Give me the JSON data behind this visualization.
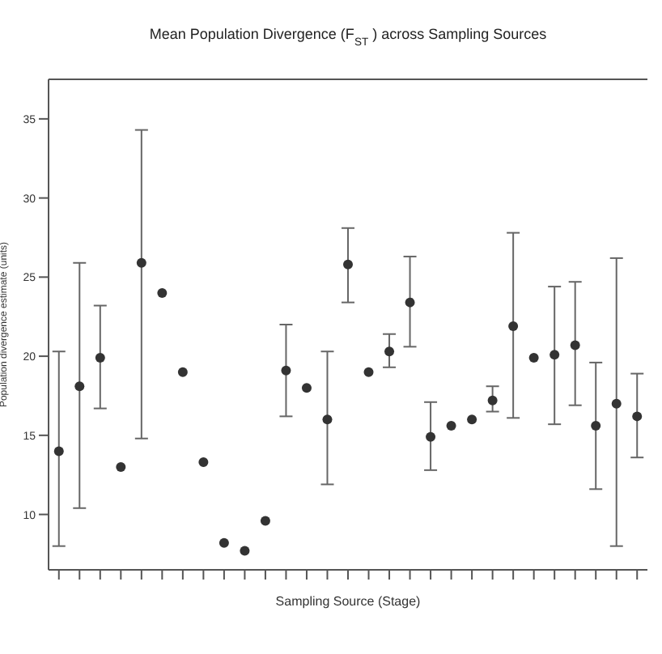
{
  "chart_data": {
    "type": "scatter",
    "title": "Mean Population Divergence (F$_{ST}$) across Sampling Sources",
    "xlabel": "Sampling Source (Stage)",
    "ylabel": "Population divergence estimate (units)",
    "categories": [
      null,
      null,
      null,
      null,
      null,
      null,
      null,
      null,
      null,
      null,
      null,
      null,
      null,
      null,
      null,
      null,
      null,
      null,
      null,
      null,
      null,
      null,
      null,
      null,
      null,
      null,
      null,
      null,
      null
    ],
    "series": [
      {
        "color": "#333333",
        "values": [
          14.0,
          18.1,
          19.9,
          13.0,
          25.9,
          24.0,
          19.0,
          13.3,
          8.2,
          7.7,
          9.6,
          19.1,
          18.0,
          16.0,
          25.8,
          19.0,
          20.3,
          23.4,
          14.9,
          15.6,
          16.0,
          17.2,
          21.9,
          19.9,
          20.1,
          20.7,
          15.6,
          17.0,
          16.2
        ],
        "errors": [
          [
            8.0,
            20.3
          ],
          [
            10.4,
            25.9
          ],
          [
            16.7,
            23.2
          ],
          null,
          [
            14.8,
            34.3
          ],
          null,
          null,
          null,
          null,
          null,
          null,
          [
            16.2,
            22.0
          ],
          null,
          [
            11.9,
            20.3
          ],
          [
            23.4,
            28.1
          ],
          null,
          [
            19.3,
            21.4
          ],
          [
            20.6,
            26.3
          ],
          [
            12.8,
            17.1
          ],
          null,
          null,
          [
            16.5,
            18.1
          ],
          [
            16.1,
            27.8
          ],
          null,
          [
            15.7,
            24.4
          ],
          [
            16.9,
            24.7
          ],
          [
            11.6,
            19.6
          ],
          [
            8.0,
            26.2
          ],
          [
            13.6,
            18.9
          ]
        ]
      }
    ],
    "ylim": [
      6.5,
      37.5
    ],
    "yticks": [
      10,
      15,
      20,
      25,
      30,
      35
    ],
    "marker": "circle"
  }
}
